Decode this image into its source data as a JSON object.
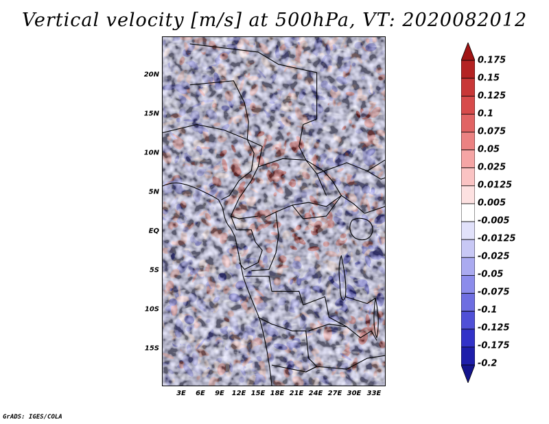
{
  "title": "Vertical velocity [m/s] at 500hPa, VT: 2020082012",
  "footer": "GrADS: IGES/COLA",
  "map": {
    "variable": "Vertical velocity",
    "units": "m/s",
    "level": "500hPa",
    "valid_time": "2020082012",
    "lat_ticks": [
      "20N",
      "15N",
      "10N",
      "5N",
      "EQ",
      "5S",
      "10S",
      "15S"
    ],
    "lon_ticks": [
      "3E",
      "6E",
      "9E",
      "12E",
      "15E",
      "18E",
      "21E",
      "24E",
      "27E",
      "30E",
      "33E"
    ]
  },
  "colorbar": {
    "levels": [
      "0.175",
      "0.15",
      "0.125",
      "0.1",
      "0.075",
      "0.05",
      "0.025",
      "0.0125",
      "0.005",
      "-0.005",
      "-0.0125",
      "-0.025",
      "-0.05",
      "-0.075",
      "-0.1",
      "-0.125",
      "-0.175",
      "-0.2"
    ],
    "colors": [
      "#a01414",
      "#b42323",
      "#c83737",
      "#d74b4b",
      "#e16464",
      "#eb8282",
      "#f5a5a5",
      "#fac3c3",
      "#fde1e1",
      "#ffffff",
      "#e1e1fa",
      "#c8c8f5",
      "#aaaaf0",
      "#8c8ceb",
      "#6e6ee1",
      "#5050d7",
      "#3232c8",
      "#1e1eaa",
      "#14148c"
    ]
  }
}
